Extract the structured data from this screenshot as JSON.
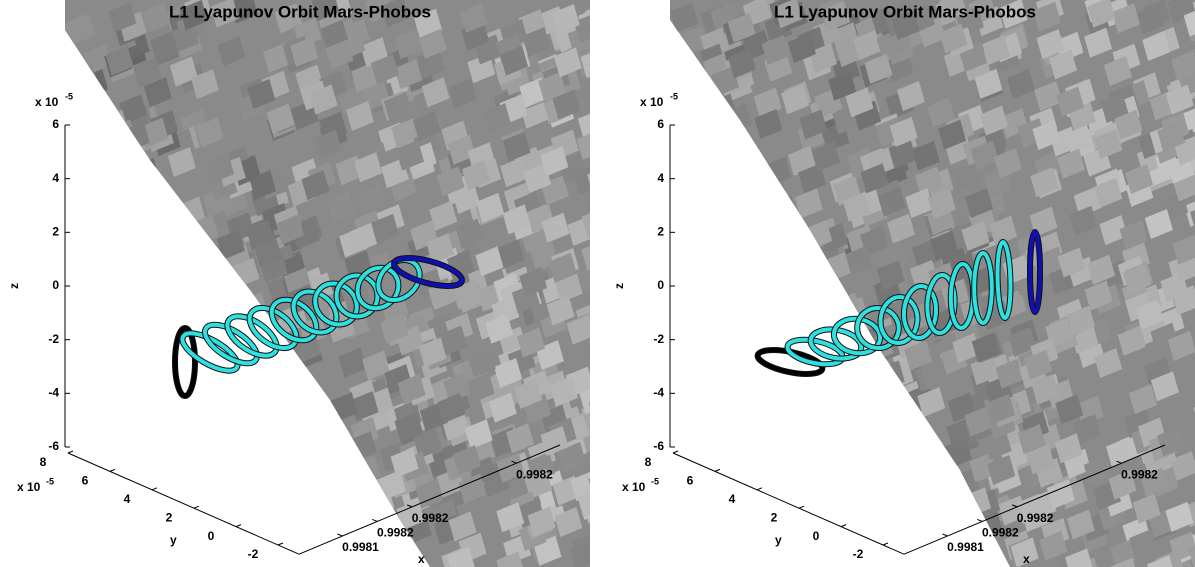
{
  "chart_data": [
    {
      "type": "orbit3d",
      "title": "L1 Lyapunov Orbit Mars-Phobos",
      "xlabel": "x",
      "ylabel": "y",
      "zlabel": "z",
      "zscale": {
        "base": "x 10",
        "exponent": "-5"
      },
      "yscale": {
        "base": "x 10",
        "exponent": "-5"
      },
      "zlim": [
        -6,
        6
      ],
      "zticks": [
        -6,
        -4,
        -2,
        0,
        2,
        4,
        6
      ],
      "ylim": [
        -3,
        8
      ],
      "yticks": [
        8,
        6,
        4,
        2,
        0,
        -2
      ],
      "xlim": [
        0.99812,
        0.99824
      ],
      "xticks": [
        {
          "value": 0.99814,
          "label": "0.9981"
        },
        {
          "value": 0.998156,
          "label": "0.9982"
        },
        {
          "value": 0.998172,
          "label": "0.9982"
        },
        {
          "value": 0.99822,
          "label": "0.9982"
        }
      ]
    },
    {
      "type": "orbit3d",
      "title": "L1 Lyapunov Orbit Mars-Phobos",
      "xlabel": "x",
      "ylabel": "y",
      "zlabel": "z",
      "zscale": {
        "base": "x 10",
        "exponent": "-5"
      },
      "yscale": {
        "base": "x 10",
        "exponent": "-5"
      },
      "zlim": [
        -6,
        6
      ],
      "zticks": [
        -6,
        -4,
        -2,
        0,
        2,
        4,
        6
      ],
      "ylim": [
        -3,
        8
      ],
      "yticks": [
        8,
        6,
        4,
        2,
        0,
        -2
      ],
      "xlim": [
        0.99812,
        0.99824
      ],
      "xticks": [
        {
          "value": 0.99814,
          "label": "0.9981"
        },
        {
          "value": 0.998156,
          "label": "0.9982"
        },
        {
          "value": 0.998172,
          "label": "0.9982"
        },
        {
          "value": 0.99822,
          "label": "0.9982"
        }
      ]
    }
  ]
}
